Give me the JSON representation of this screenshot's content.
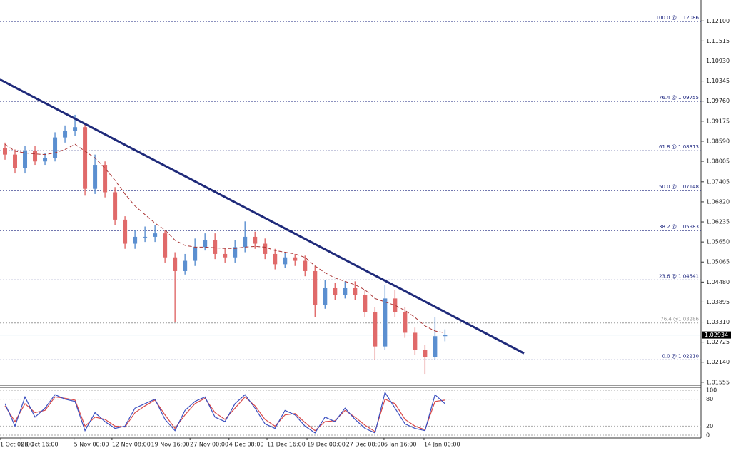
{
  "chart_data": [
    {
      "type": "candlestick",
      "open": [
        1.084,
        1.082,
        1.078,
        1.083,
        1.08,
        1.081,
        1.087,
        1.089,
        1.09,
        1.072,
        1.079,
        1.071,
        1.063,
        1.056,
        1.058,
        1.058,
        1.059,
        1.052,
        1.048,
        1.051,
        1.055,
        1.057,
        1.053,
        1.052,
        1.055,
        1.058,
        1.056,
        1.053,
        1.05,
        1.052,
        1.051,
        1.048,
        1.038,
        1.043,
        1.041,
        1.043,
        1.041,
        1.036,
        1.026,
        1.04,
        1.036,
        1.03,
        1.025,
        1.023,
        1.029
      ],
      "high": [
        1.0855,
        1.0835,
        1.0845,
        1.0845,
        1.0825,
        1.0885,
        1.0905,
        1.0936,
        1.091,
        1.082,
        1.08,
        1.0725,
        1.064,
        1.06,
        1.061,
        1.0615,
        1.06,
        1.0535,
        1.053,
        1.0575,
        1.059,
        1.059,
        1.0545,
        1.057,
        1.0625,
        1.0595,
        1.0575,
        1.0545,
        1.0535,
        1.053,
        1.0525,
        1.0495,
        1.0455,
        1.0445,
        1.045,
        1.045,
        1.0425,
        1.0375,
        1.044,
        1.0425,
        1.0375,
        1.0315,
        1.0265,
        1.0345,
        1.031
      ],
      "low": [
        1.0805,
        1.0765,
        1.0765,
        1.079,
        1.079,
        1.08,
        1.0855,
        1.0875,
        1.07,
        1.0705,
        1.0695,
        1.0615,
        1.0545,
        1.0545,
        1.0565,
        1.0565,
        1.0505,
        1.033,
        1.047,
        1.0495,
        1.054,
        1.0515,
        1.0505,
        1.0505,
        1.0535,
        1.0545,
        1.0515,
        1.0485,
        1.049,
        1.0495,
        1.0465,
        1.0345,
        1.037,
        1.0395,
        1.04,
        1.0395,
        1.0345,
        1.022,
        1.025,
        1.0345,
        1.0285,
        1.0235,
        1.018,
        1.022,
        1.0275
      ],
      "close": [
        1.082,
        1.078,
        1.083,
        1.08,
        1.081,
        1.087,
        1.089,
        1.09,
        1.072,
        1.079,
        1.071,
        1.063,
        1.056,
        1.058,
        1.058,
        1.059,
        1.052,
        1.048,
        1.051,
        1.055,
        1.057,
        1.053,
        1.052,
        1.055,
        1.058,
        1.056,
        1.053,
        1.05,
        1.052,
        1.051,
        1.048,
        1.038,
        1.043,
        1.041,
        1.043,
        1.041,
        1.036,
        1.026,
        1.04,
        1.036,
        1.03,
        1.025,
        1.023,
        1.029,
        1.0293
      ],
      "up_color": "#5b8fd0",
      "down_color": "#e06a6a",
      "ma": {
        "color": "#a83232",
        "values": [
          1.085,
          1.083,
          1.0825,
          1.0822,
          1.082,
          1.0825,
          1.0835,
          1.085,
          1.083,
          1.081,
          1.078,
          1.0745,
          1.0705,
          1.067,
          1.0645,
          1.062,
          1.06,
          1.057,
          1.0555,
          1.055,
          1.055,
          1.0548,
          1.0546,
          1.0546,
          1.055,
          1.0552,
          1.055,
          1.054,
          1.0535,
          1.053,
          1.052,
          1.0495,
          1.0475,
          1.046,
          1.045,
          1.044,
          1.0425,
          1.04,
          1.039,
          1.038,
          1.0365,
          1.0345,
          1.032,
          1.0305,
          1.03
        ]
      },
      "trendline": {
        "color": "#1f2a7a",
        "x": [
          -0.5,
          51.9
        ],
        "y": [
          1.1039,
          1.024
        ]
      },
      "levels": [
        {
          "label": "100.0 @ 1.12086",
          "value": 1.12086,
          "color": "#1a237e"
        },
        {
          "label": "76.4 @ 1.09755",
          "value": 1.09755,
          "color": "#1a237e"
        },
        {
          "label": "61.8 @ 1.08313",
          "value": 1.08313,
          "color": "#1a237e"
        },
        {
          "label": "50.0 @ 1.07148",
          "value": 1.07148,
          "color": "#1a237e"
        },
        {
          "label": "38.2 @ 1.05983",
          "value": 1.05983,
          "color": "#1a237e"
        },
        {
          "label": "23.6 @ 1.04541",
          "value": 1.04541,
          "color": "#1a237e"
        },
        {
          "label": "76.4 @1.03286",
          "value": 1.03286,
          "color": "#9a9a9a"
        },
        {
          "label": "0.0 @ 1.02210",
          "value": 1.0221,
          "color": "#1a237e"
        }
      ],
      "current_price": 1.02934,
      "xlim": [
        -0.5,
        69.6
      ],
      "ylim": [
        1.0151,
        1.1271
      ],
      "yticks": [
        {
          "value": 1.121,
          "label": "1.12100"
        },
        1.11515,
        {
          "value": 1.1093,
          "label": "1.10930"
        },
        1.10345,
        {
          "value": 1.0976,
          "label": "1.09760"
        },
        1.09175,
        {
          "value": 1.0859,
          "label": "1.08590"
        },
        1.08005,
        1.07405,
        {
          "value": 1.0682,
          "label": "1.06820"
        },
        1.06235,
        {
          "value": 1.0565,
          "label": "1.05650"
        },
        1.05065,
        {
          "value": 1.0448,
          "label": "1.04480"
        },
        1.03895,
        {
          "value": 1.0331,
          "label": "1.03310"
        },
        1.02725,
        {
          "value": 1.0214,
          "label": "1.02140"
        },
        1.01555
      ],
      "xticks": [
        {
          "value": -0.5,
          "label": "1 Oct 08:00"
        },
        {
          "value": 1.6,
          "label": "28 Oct 16:00"
        },
        {
          "value": 6.9,
          "label": "5 Nov 00:00"
        },
        {
          "value": 10.7,
          "label": "12 Nov 08:00"
        },
        {
          "value": 14.6,
          "label": "19 Nov 16:00"
        },
        {
          "value": 18.5,
          "label": "27 Nov 00:00"
        },
        {
          "value": 22.4,
          "label": "4 Dec 08:00"
        },
        {
          "value": 26.2,
          "label": "11 Dec 16:00"
        },
        {
          "value": 30.2,
          "label": "19 Dec 00:00"
        },
        {
          "value": 34.1,
          "label": "27 Dec 08:00"
        },
        {
          "value": 37.9,
          "label": "6 Jan 16:00"
        },
        {
          "value": 41.9,
          "label": "14 Jan 00:00"
        }
      ]
    },
    {
      "type": "line",
      "series": [
        {
          "color": "#d94a4a",
          "values": [
            65,
            30,
            70,
            50,
            55,
            85,
            82,
            78,
            20,
            40,
            35,
            20,
            18,
            50,
            65,
            78,
            45,
            15,
            45,
            70,
            82,
            50,
            35,
            60,
            85,
            65,
            35,
            20,
            45,
            48,
            28,
            10,
            30,
            32,
            55,
            40,
            22,
            8,
            80,
            70,
            35,
            20,
            12,
            75,
            78
          ]
        },
        {
          "color": "#3a4fc0",
          "values": [
            70,
            20,
            85,
            40,
            60,
            90,
            80,
            75,
            10,
            50,
            30,
            15,
            20,
            60,
            70,
            80,
            35,
            10,
            55,
            75,
            85,
            40,
            30,
            70,
            90,
            60,
            25,
            15,
            55,
            45,
            20,
            5,
            40,
            30,
            60,
            35,
            15,
            5,
            95,
            60,
            25,
            15,
            10,
            90,
            70
          ]
        }
      ],
      "xlim": [
        -0.5,
        69.6
      ],
      "ylim": [
        0,
        100
      ],
      "yticks": [
        100,
        80,
        20,
        0
      ]
    }
  ]
}
